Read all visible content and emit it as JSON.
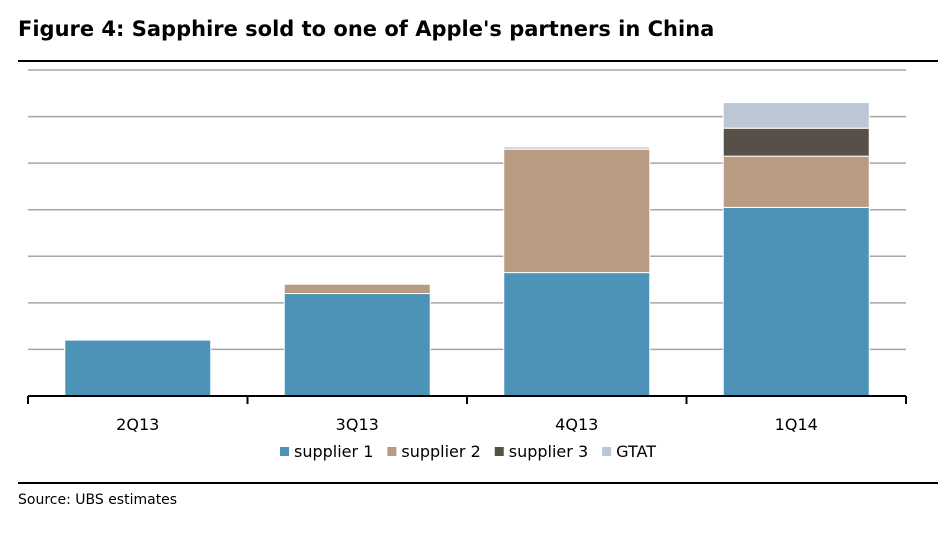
{
  "title": "Figure 4: Sapphire sold to one of Apple's partners in China",
  "source": "Source:  UBS estimates",
  "chart_data": {
    "type": "bar",
    "stacked": true,
    "categories": [
      "2Q13",
      "3Q13",
      "4Q13",
      "1Q14"
    ],
    "series": [
      {
        "name": "supplier 1",
        "color": "#4d93b7",
        "values": [
          1.2,
          2.2,
          2.65,
          4.05
        ]
      },
      {
        "name": "supplier 2",
        "color": "#b89b80",
        "values": [
          0,
          0.2,
          2.65,
          1.1
        ]
      },
      {
        "name": "supplier 3",
        "color": "#575049",
        "values": [
          0,
          0,
          0,
          0.6
        ]
      },
      {
        "name": "GTAT",
        "color": "#bcc7d6",
        "values": [
          0,
          0,
          0.05,
          0.55
        ]
      }
    ],
    "ylim": [
      0,
      7
    ],
    "y_tick_labels_shown": false,
    "grid": true,
    "legend": "bottom"
  }
}
